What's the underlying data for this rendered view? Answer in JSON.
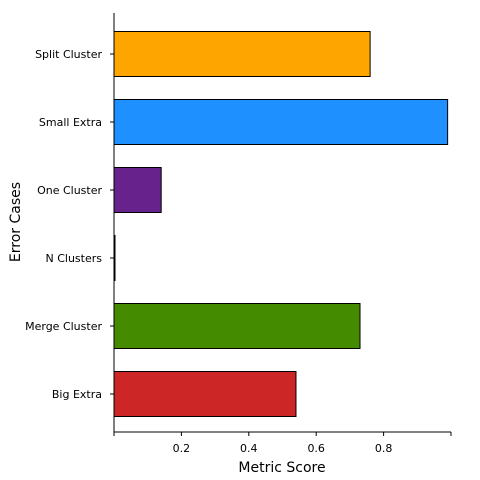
{
  "chart_data": {
    "type": "bar",
    "orientation": "horizontal",
    "title": "",
    "xlabel": "Metric Score",
    "ylabel": "Error Cases",
    "xlim": [
      0,
      1.0
    ],
    "xticks": [
      0.2,
      0.4,
      0.6,
      0.8
    ],
    "xtick_labels": [
      "0.2",
      "0.4",
      "0.6",
      "0.8"
    ],
    "grid": false,
    "legend": "none",
    "categories": [
      "Split Cluster",
      "Small Extra",
      "One Cluster",
      "N Clusters",
      "Merge Cluster",
      "Big Extra"
    ],
    "values": [
      0.76,
      0.99,
      0.14,
      0.002,
      0.73,
      0.54
    ],
    "colors": [
      "#FFA500",
      "#1E90FF",
      "#68228B",
      "#4B0082",
      "#458B00",
      "#CD2626"
    ]
  }
}
